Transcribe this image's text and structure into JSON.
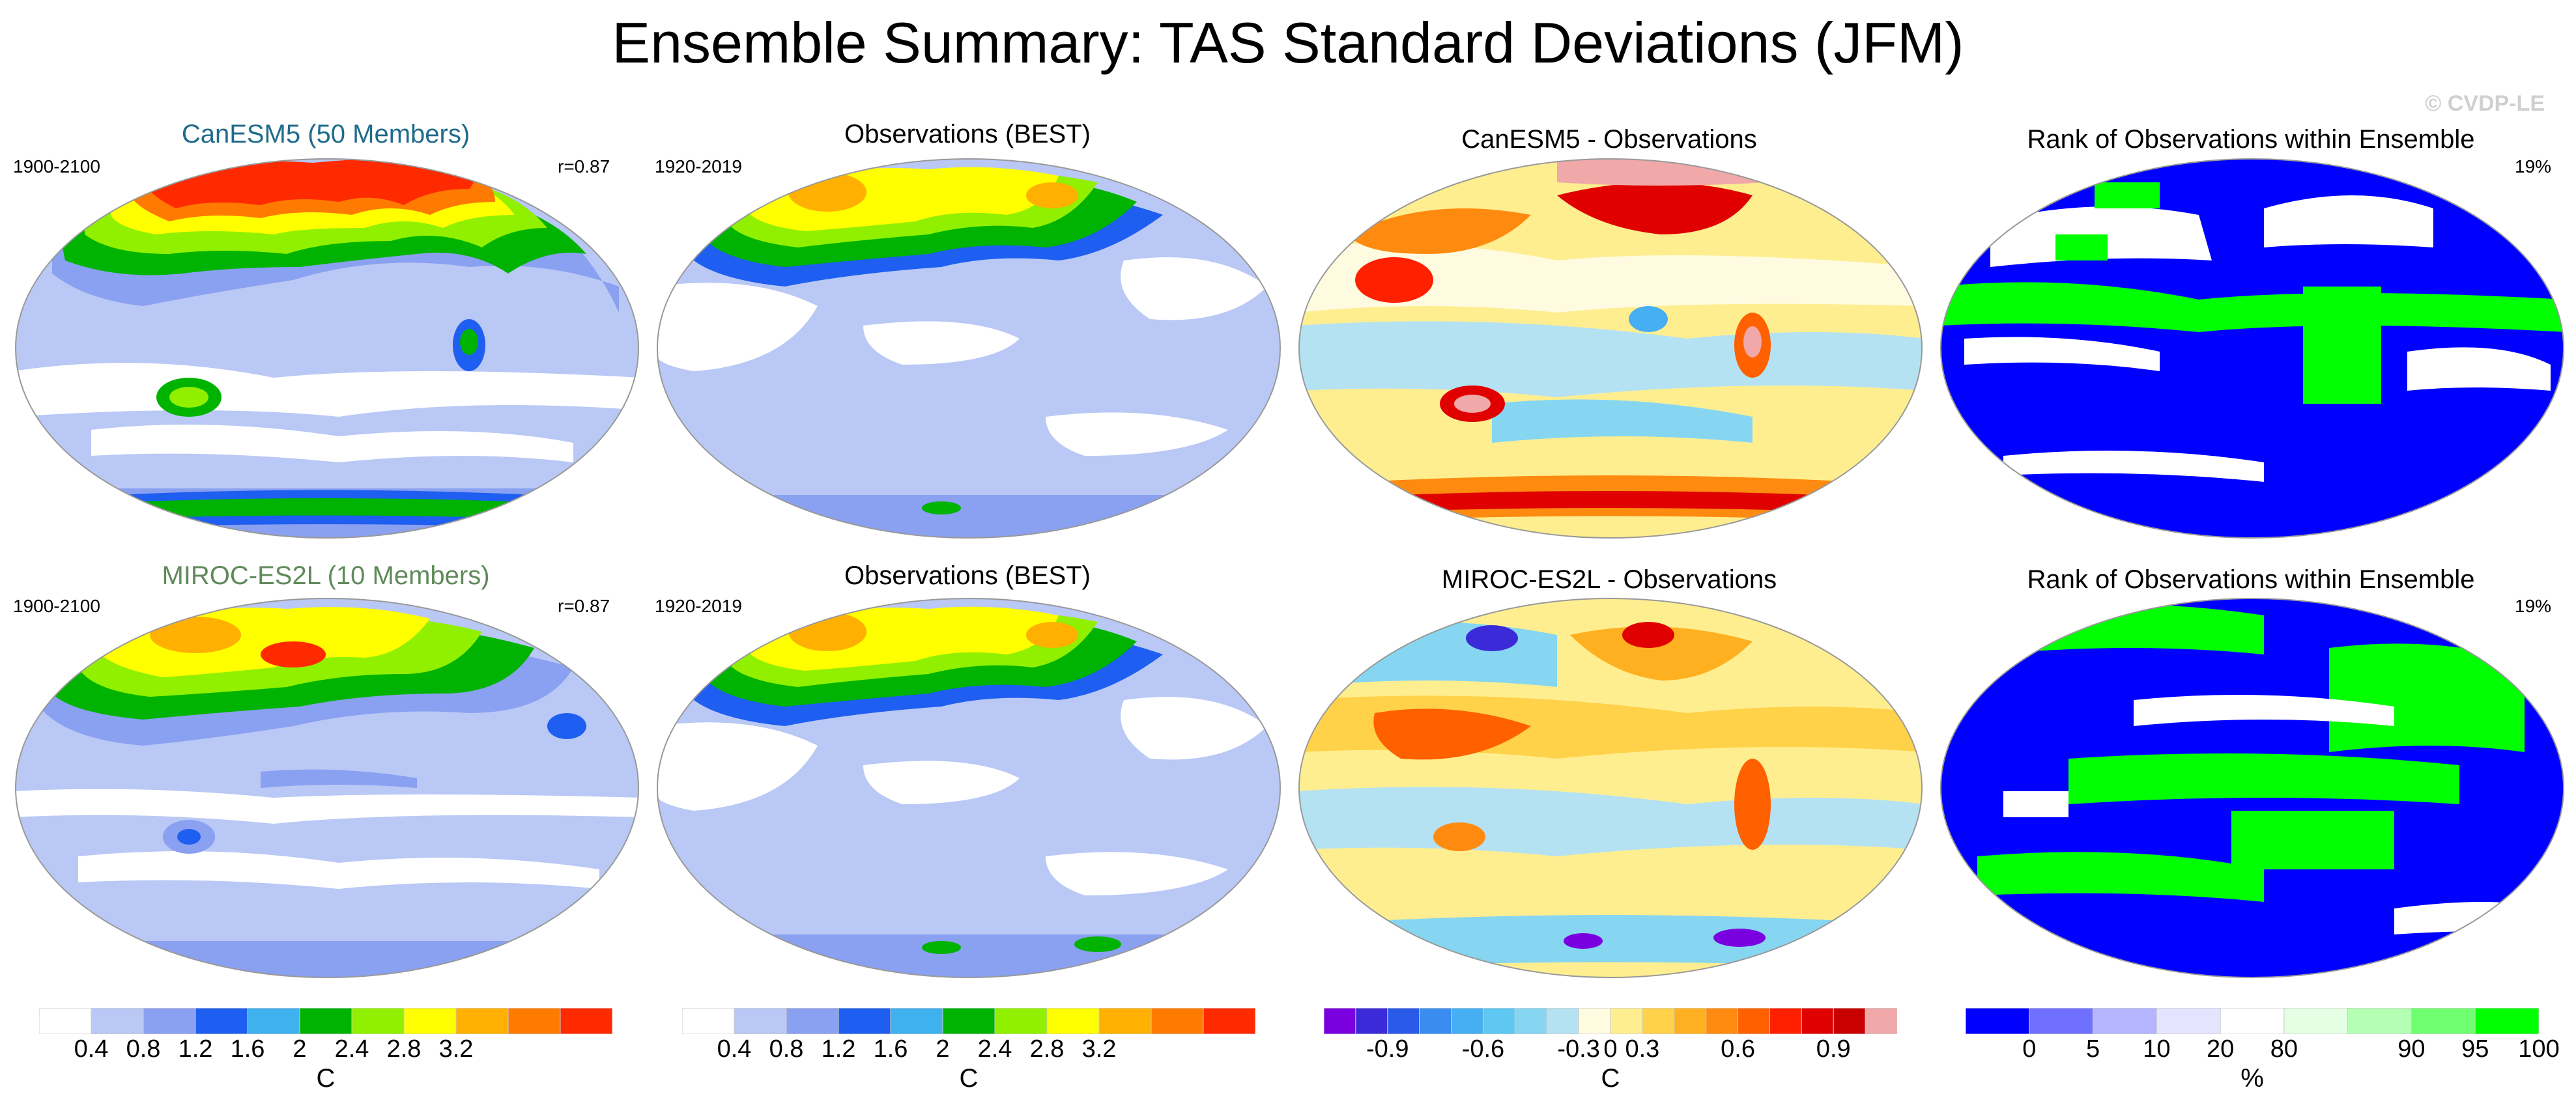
{
  "title": "Ensemble Summary: TAS Standard Deviations (JFM)",
  "watermark": "© CVDP-LE",
  "colors": {
    "model1_title": "#1f6b8c",
    "model2_title": "#5f8a5a",
    "ocean_low": "#b9c8f5",
    "coast": "#777777"
  },
  "rows": [
    {
      "model": {
        "title": "CanESM5 (50 Members)",
        "years": "1900-2100",
        "corr": "r=0.87"
      },
      "obs": {
        "title": "Observations (BEST)",
        "years": "1920-2019"
      },
      "diff": {
        "title": "CanESM5 - Observations"
      },
      "rank": {
        "title": "Rank of Observations within Ensemble",
        "pct": "19%"
      }
    },
    {
      "model": {
        "title": "MIROC-ES2L (10 Members)",
        "years": "1900-2100",
        "corr": "r=0.87"
      },
      "obs": {
        "title": "Observations (BEST)",
        "years": "1920-2019"
      },
      "diff": {
        "title": "MIROC-ES2L - Observations"
      },
      "rank": {
        "title": "Rank of Observations within Ensemble",
        "pct": "19%"
      }
    }
  ],
  "colorbars": {
    "std": {
      "unit": "C",
      "colors": [
        "#ffffff",
        "#b9c8f5",
        "#8aa0f0",
        "#1e5ef0",
        "#3fb1ee",
        "#00b300",
        "#90f000",
        "#ffff00",
        "#ffb000",
        "#ff7a00",
        "#ff2a00"
      ],
      "ticks": [
        "0.4",
        "0.8",
        "1.2",
        "1.6",
        "2",
        "2.4",
        "2.8",
        "3.2"
      ]
    },
    "diff": {
      "unit": "C",
      "colors": [
        "#7a00e0",
        "#3a2ad8",
        "#2a5ae8",
        "#3a8cf0",
        "#46aef2",
        "#5ec7f2",
        "#86d6f2",
        "#b4e2f2",
        "#fffbe0",
        "#ffee90",
        "#ffd24a",
        "#ffb020",
        "#ff8a10",
        "#ff6000",
        "#ff2000",
        "#e00000",
        "#c80000",
        "#f0a8a8"
      ],
      "ticks": [
        "-0.9",
        "-0.6",
        "-0.3",
        "0",
        "0.3",
        "0.6",
        "0.9"
      ]
    },
    "rank": {
      "unit": "%",
      "colors": [
        "#0000ff",
        "#7070ff",
        "#b4b4ff",
        "#e4e4ff",
        "#ffffff",
        "#e4ffe4",
        "#b4ffb4",
        "#70ff70",
        "#00ff00"
      ],
      "ticks": [
        "0",
        "5",
        "10",
        "20",
        "80",
        "90",
        "95",
        "100"
      ]
    }
  }
}
